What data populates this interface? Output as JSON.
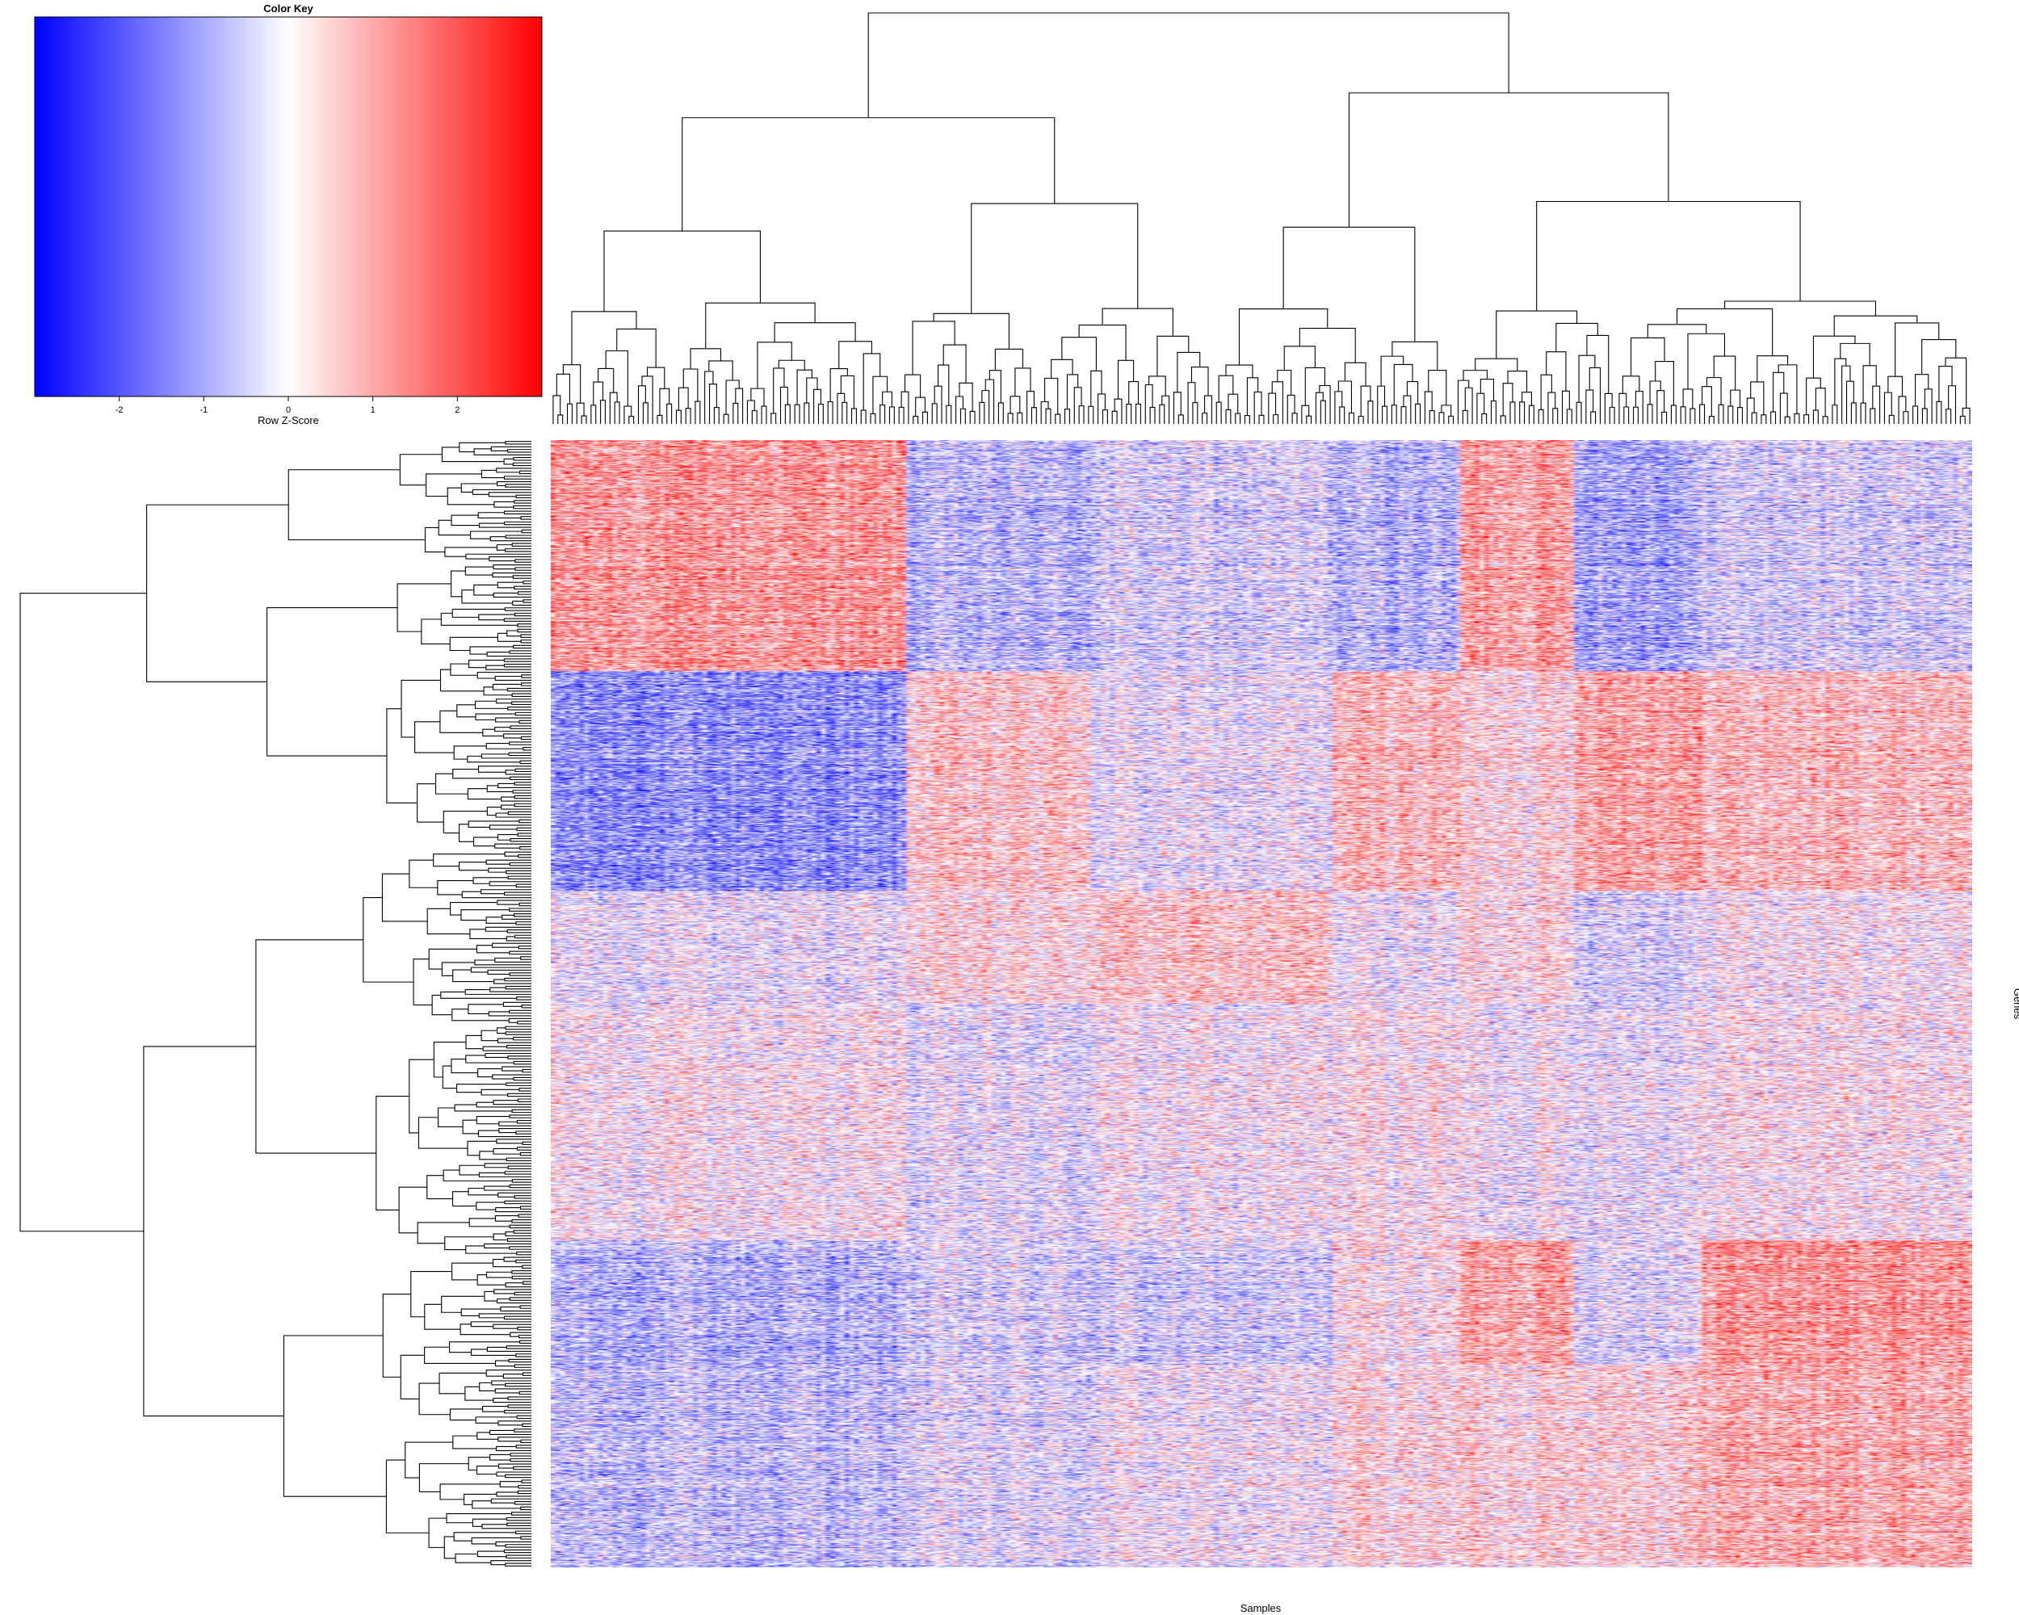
{
  "chart_data": {
    "type": "heatmap",
    "title": "",
    "xlabel": "Samples",
    "ylabel": "Genes",
    "color_scale": {
      "low": "#0000ff",
      "mid": "#ffffff",
      "high": "#ff0000"
    },
    "color_key": {
      "title": "Color Key",
      "xlabel": "Row Z-Score",
      "range": [
        -3,
        3
      ],
      "ticks": [
        {
          "value": -2,
          "label": "-2"
        },
        {
          "value": -1,
          "label": "-1"
        },
        {
          "value": 0,
          "label": "0"
        },
        {
          "value": 1,
          "label": "1"
        },
        {
          "value": 2,
          "label": "2"
        }
      ]
    },
    "dimensions": {
      "samples": 300,
      "genes": 1600
    },
    "sample_blocks": [
      {
        "from": 0,
        "to": 0.25
      },
      {
        "from": 0.25,
        "to": 0.38
      },
      {
        "from": 0.38,
        "to": 0.55
      },
      {
        "from": 0.55,
        "to": 0.64
      },
      {
        "from": 0.64,
        "to": 0.72
      },
      {
        "from": 0.72,
        "to": 0.81
      },
      {
        "from": 0.81,
        "to": 1.0
      }
    ],
    "gene_blocks": [
      {
        "from": 0,
        "to": 0.205,
        "means": [
          1.4,
          -0.9,
          -0.5,
          -0.9,
          1.3,
          -1.1,
          -0.5
        ]
      },
      {
        "from": 0.205,
        "to": 0.4,
        "means": [
          -1.5,
          0.7,
          -0.2,
          0.9,
          0.5,
          1.3,
          0.9
        ]
      },
      {
        "from": 0.4,
        "to": 0.5,
        "means": [
          -0.2,
          0.4,
          0.7,
          -0.1,
          0.4,
          -0.4,
          0.1
        ]
      },
      {
        "from": 0.5,
        "to": 0.71,
        "means": [
          0.1,
          -0.3,
          0.0,
          0.2,
          0.0,
          -0.1,
          0.2
        ]
      },
      {
        "from": 0.71,
        "to": 0.82,
        "means": [
          -1.0,
          -0.5,
          -0.6,
          0.2,
          1.2,
          -0.3,
          1.4
        ]
      },
      {
        "from": 0.82,
        "to": 1.0,
        "means": [
          -0.8,
          -0.4,
          -0.1,
          0.4,
          0.5,
          0.6,
          1.1
        ]
      }
    ]
  }
}
